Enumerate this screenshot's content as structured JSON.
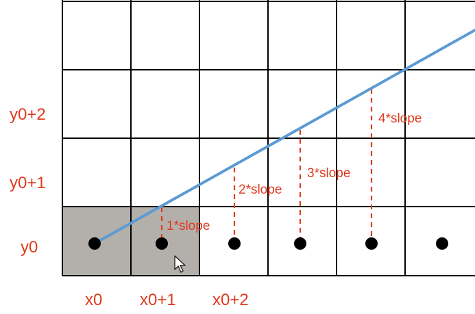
{
  "colors": {
    "line": "#5b9bd5",
    "label": "#e03a1e",
    "grid": "#000000",
    "filled_cell": "#b3b0ac",
    "background": "#ffffff"
  },
  "y_labels": [
    "y0+2",
    "y0+1",
    "y0"
  ],
  "x_labels": [
    "x0",
    "x0+1",
    "x0+2"
  ],
  "slope_labels": [
    "1*slope",
    "2*slope",
    "3*slope",
    "4*slope"
  ],
  "icons": {
    "cursor": "mouse-pointer-icon"
  }
}
